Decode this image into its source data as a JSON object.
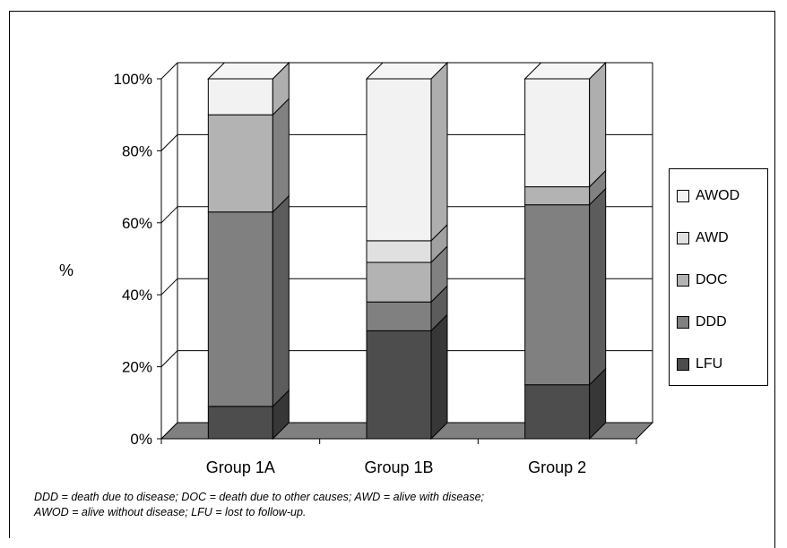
{
  "chart_data": {
    "type": "bar",
    "stacked": true,
    "percent": true,
    "three_d": true,
    "categories": [
      "Group 1A",
      "Group 1B",
      "Group 2"
    ],
    "ylabel": "%",
    "ylim": [
      0,
      100
    ],
    "yticks": [
      "0%",
      "20%",
      "40%",
      "60%",
      "80%",
      "100%"
    ],
    "grid": true,
    "legend_position": "right",
    "series": [
      {
        "name": "LFU",
        "values": [
          9,
          30,
          15
        ],
        "color": "#4d4d4d"
      },
      {
        "name": "DDD",
        "values": [
          54,
          8,
          50
        ],
        "color": "#808080"
      },
      {
        "name": "DOC",
        "values": [
          27,
          11,
          5
        ],
        "color": "#b3b3b3"
      },
      {
        "name": "AWD",
        "values": [
          0,
          6,
          0
        ],
        "color": "#e0e0e0"
      },
      {
        "name": "AWOD",
        "values": [
          10,
          45,
          30
        ],
        "color": "#f2f2f2"
      }
    ],
    "legend_order": [
      "AWOD",
      "AWD",
      "DOC",
      "DDD",
      "LFU"
    ]
  },
  "footnote": {
    "line1": "DDD = death due to disease; DOC = death due to other causes; AWD = alive with disease;",
    "line2": "AWOD = alive without disease; LFU = lost to follow-up."
  }
}
